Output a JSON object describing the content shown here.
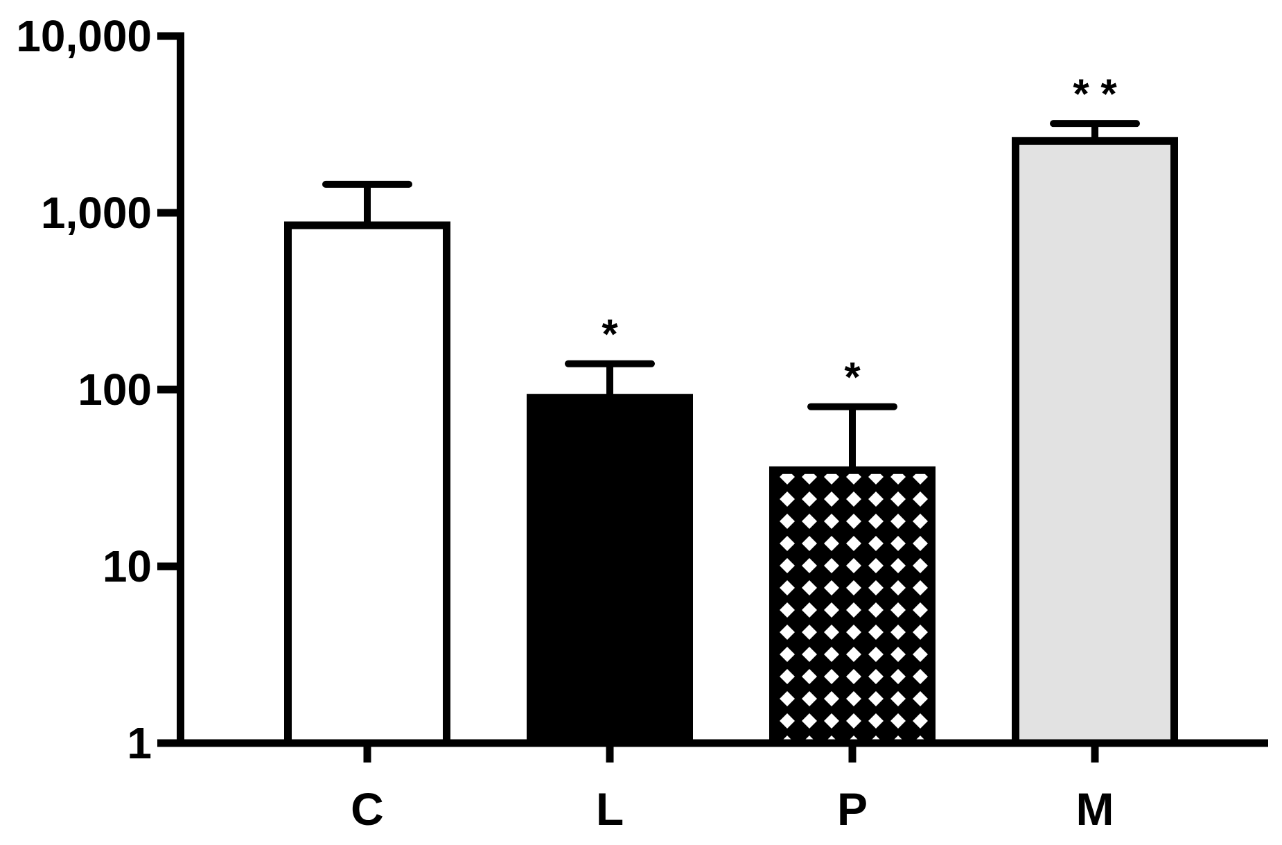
{
  "chart_data": {
    "type": "bar",
    "title": "",
    "xlabel": "",
    "ylabel": "",
    "yscale": "log",
    "ylim": [
      1,
      10000
    ],
    "yticks": [
      1,
      10,
      100,
      1000,
      10000
    ],
    "ytick_labels": [
      "1",
      "10",
      "100",
      "1,000",
      "10,000"
    ],
    "grid": false,
    "categories": [
      "C",
      "L",
      "P",
      "M"
    ],
    "values": [
      850,
      90,
      35,
      2550
    ],
    "error_upper": [
      1450,
      140,
      80,
      3200
    ],
    "significance": [
      "",
      "*",
      "*",
      "* *"
    ],
    "fills": [
      "white",
      "black",
      "crosshatch",
      "lightgray"
    ],
    "colors": {
      "axis": "#000000",
      "white": "#ffffff",
      "black": "#000000",
      "lightgray": "#e2e2e2",
      "crosshatch_bg": "#000000",
      "crosshatch_fg": "#ffffff"
    }
  }
}
